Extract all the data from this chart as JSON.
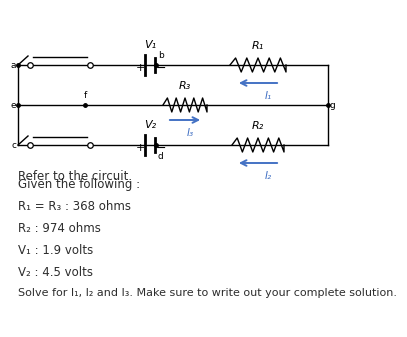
{
  "title": "Refer to the circuit.",
  "bg_color": "#ffffff",
  "text_color": "#2d2d2d",
  "blue_color": "#4472C4",
  "wire_color": "#000000",
  "given_lines": [
    "Given the following :",
    "R₁ = R₃ : 368 ohms",
    "R₂ : 974 ohms",
    "V₁ : 1.9 volts",
    "V₂ : 4.5 volts",
    "Solve for I₁, I₂ and I₃. Make sure to write out your complete solution."
  ]
}
